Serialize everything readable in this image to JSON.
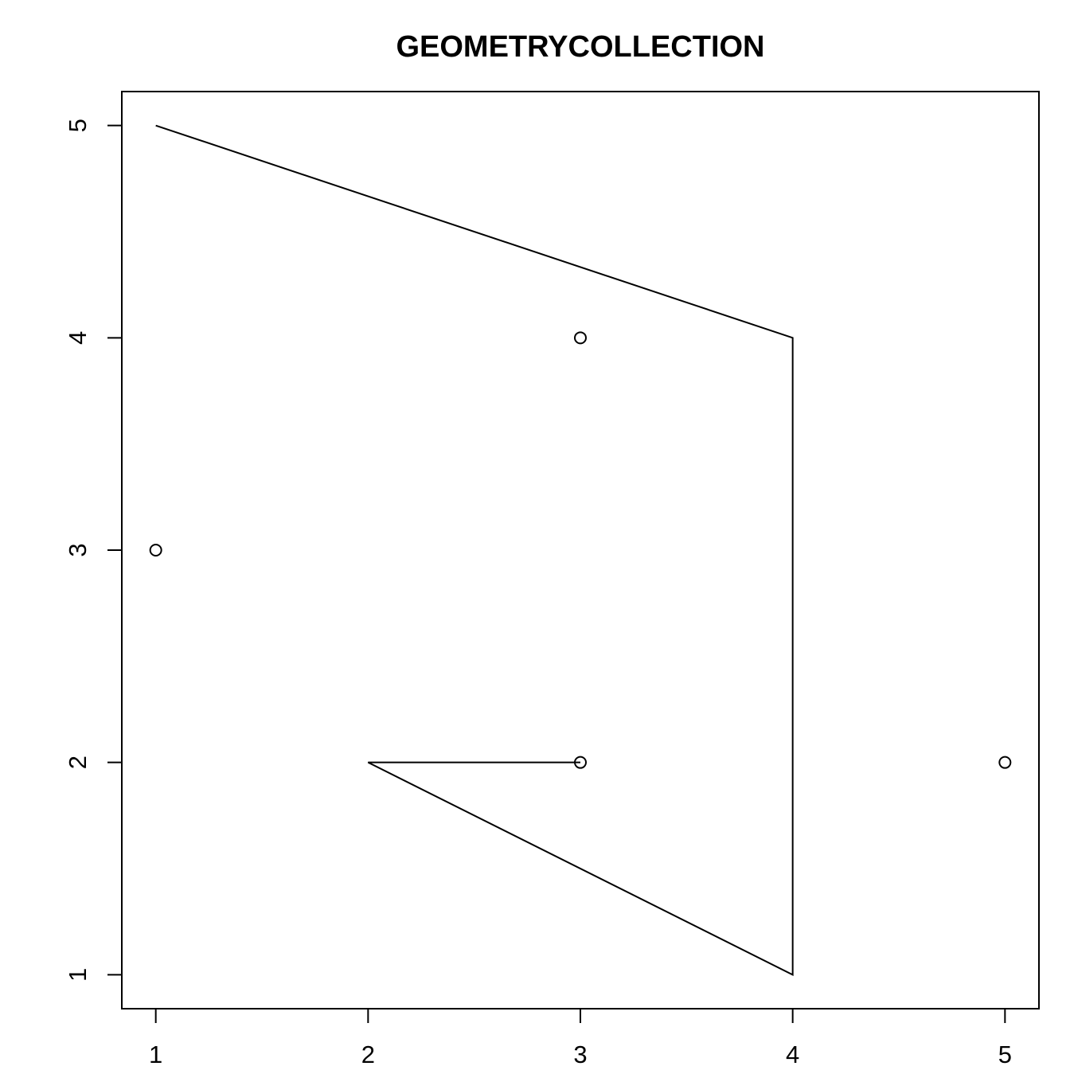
{
  "chart_data": {
    "type": "scatter",
    "title": "GEOMETRYCOLLECTION",
    "xlabel": "",
    "ylabel": "",
    "xlim": [
      0.84,
      5.16
    ],
    "ylim": [
      0.84,
      5.16
    ],
    "x_ticks": [
      1,
      2,
      3,
      4,
      5
    ],
    "y_ticks": [
      1,
      2,
      3,
      4,
      5
    ],
    "x_tick_labels": [
      "1",
      "2",
      "3",
      "4",
      "5"
    ],
    "y_tick_labels": [
      "1",
      "2",
      "3",
      "4",
      "5"
    ],
    "grid": false,
    "frame": true,
    "color": "#000000",
    "points": [
      {
        "x": 1,
        "y": 3
      },
      {
        "x": 3,
        "y": 4
      },
      {
        "x": 3,
        "y": 2
      },
      {
        "x": 5,
        "y": 2
      }
    ],
    "lines": [
      {
        "coords": [
          [
            1,
            5
          ],
          [
            4,
            4
          ],
          [
            4,
            1
          ],
          [
            2,
            2
          ],
          [
            3,
            2
          ]
        ]
      }
    ]
  }
}
